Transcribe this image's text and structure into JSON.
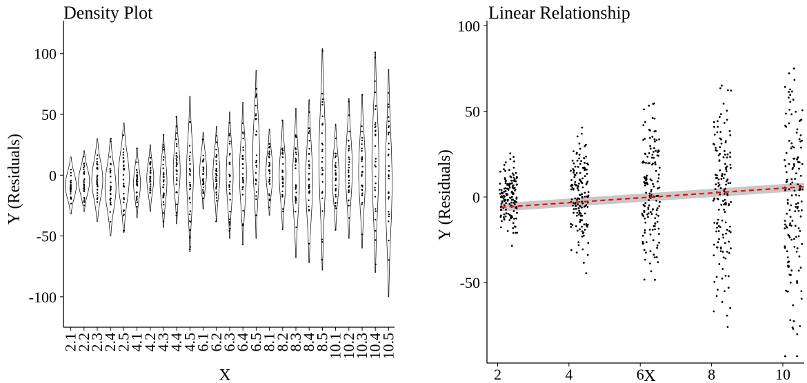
{
  "chart_data": [
    {
      "type": "violin",
      "title": "Density Plot",
      "xlabel": "X",
      "ylabel": "Y (Residuals)",
      "ylim": [
        -125,
        127
      ],
      "yticks": [
        -100,
        -50,
        0,
        50,
        100
      ],
      "grid": false,
      "categories": [
        "2.1",
        "2.2",
        "2.3",
        "2.4",
        "2.5",
        "4.1",
        "4.2",
        "4.3",
        "4.4",
        "4.5",
        "6.1",
        "6.2",
        "6.3",
        "6.4",
        "6.5",
        "8.1",
        "8.2",
        "8.3",
        "8.4",
        "8.5",
        "10.1",
        "10.2",
        "10.3",
        "10.4",
        "10.5"
      ],
      "ranges": [
        [
          -32,
          15
        ],
        [
          -30,
          20
        ],
        [
          -38,
          30
        ],
        [
          -50,
          30
        ],
        [
          -47,
          43
        ],
        [
          -35,
          22
        ],
        [
          -30,
          25
        ],
        [
          -43,
          33
        ],
        [
          -40,
          48
        ],
        [
          -63,
          65
        ],
        [
          -28,
          35
        ],
        [
          -38,
          40
        ],
        [
          -52,
          52
        ],
        [
          -57,
          60
        ],
        [
          -52,
          86
        ],
        [
          -33,
          38
        ],
        [
          -45,
          45
        ],
        [
          -68,
          55
        ],
        [
          -72,
          62
        ],
        [
          -78,
          104
        ],
        [
          -45,
          42
        ],
        [
          -52,
          63
        ],
        [
          -60,
          66
        ],
        [
          -80,
          101
        ],
        [
          -100,
          87
        ]
      ]
    },
    {
      "type": "scatter",
      "title": "Linear Relationship",
      "xlabel": "X",
      "ylabel": "Y (Residuals)",
      "xlim": [
        1.7,
        10.6
      ],
      "ylim": [
        -97,
        103
      ],
      "xticks": [
        2,
        4,
        6,
        8,
        10
      ],
      "yticks": [
        -50,
        0,
        50,
        100
      ],
      "grid": false,
      "groups": [
        {
          "x": 2.3,
          "sd": 10
        },
        {
          "x": 4.3,
          "sd": 17
        },
        {
          "x": 6.3,
          "sd": 24
        },
        {
          "x": 8.3,
          "sd": 29
        },
        {
          "x": 10.3,
          "sd": 36
        }
      ],
      "fit_line": {
        "x": [
          2.1,
          10.6
        ],
        "y": [
          -6,
          6
        ],
        "color": "#ff0000",
        "style": "dashed",
        "band_color": "#bebebe"
      }
    }
  ]
}
